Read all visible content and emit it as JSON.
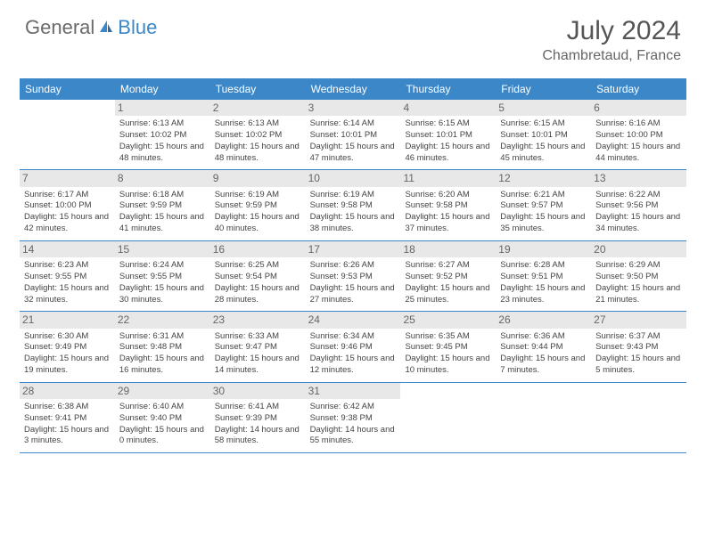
{
  "logo": {
    "text1": "General",
    "text2": "Blue"
  },
  "title": "July 2024",
  "location": "Chambretaud, France",
  "header_bg": "#3b87c8",
  "daynum_bg": "#e8e8e8",
  "border_color": "#3b87c8",
  "dayNames": [
    "Sunday",
    "Monday",
    "Tuesday",
    "Wednesday",
    "Thursday",
    "Friday",
    "Saturday"
  ],
  "weeks": [
    [
      {
        "n": "",
        "empty": true
      },
      {
        "n": "1",
        "sr": "6:13 AM",
        "ss": "10:02 PM",
        "dl": "15 hours and 48 minutes."
      },
      {
        "n": "2",
        "sr": "6:13 AM",
        "ss": "10:02 PM",
        "dl": "15 hours and 48 minutes."
      },
      {
        "n": "3",
        "sr": "6:14 AM",
        "ss": "10:01 PM",
        "dl": "15 hours and 47 minutes."
      },
      {
        "n": "4",
        "sr": "6:15 AM",
        "ss": "10:01 PM",
        "dl": "15 hours and 46 minutes."
      },
      {
        "n": "5",
        "sr": "6:15 AM",
        "ss": "10:01 PM",
        "dl": "15 hours and 45 minutes."
      },
      {
        "n": "6",
        "sr": "6:16 AM",
        "ss": "10:00 PM",
        "dl": "15 hours and 44 minutes."
      }
    ],
    [
      {
        "n": "7",
        "sr": "6:17 AM",
        "ss": "10:00 PM",
        "dl": "15 hours and 42 minutes."
      },
      {
        "n": "8",
        "sr": "6:18 AM",
        "ss": "9:59 PM",
        "dl": "15 hours and 41 minutes."
      },
      {
        "n": "9",
        "sr": "6:19 AM",
        "ss": "9:59 PM",
        "dl": "15 hours and 40 minutes."
      },
      {
        "n": "10",
        "sr": "6:19 AM",
        "ss": "9:58 PM",
        "dl": "15 hours and 38 minutes."
      },
      {
        "n": "11",
        "sr": "6:20 AM",
        "ss": "9:58 PM",
        "dl": "15 hours and 37 minutes."
      },
      {
        "n": "12",
        "sr": "6:21 AM",
        "ss": "9:57 PM",
        "dl": "15 hours and 35 minutes."
      },
      {
        "n": "13",
        "sr": "6:22 AM",
        "ss": "9:56 PM",
        "dl": "15 hours and 34 minutes."
      }
    ],
    [
      {
        "n": "14",
        "sr": "6:23 AM",
        "ss": "9:55 PM",
        "dl": "15 hours and 32 minutes."
      },
      {
        "n": "15",
        "sr": "6:24 AM",
        "ss": "9:55 PM",
        "dl": "15 hours and 30 minutes."
      },
      {
        "n": "16",
        "sr": "6:25 AM",
        "ss": "9:54 PM",
        "dl": "15 hours and 28 minutes."
      },
      {
        "n": "17",
        "sr": "6:26 AM",
        "ss": "9:53 PM",
        "dl": "15 hours and 27 minutes."
      },
      {
        "n": "18",
        "sr": "6:27 AM",
        "ss": "9:52 PM",
        "dl": "15 hours and 25 minutes."
      },
      {
        "n": "19",
        "sr": "6:28 AM",
        "ss": "9:51 PM",
        "dl": "15 hours and 23 minutes."
      },
      {
        "n": "20",
        "sr": "6:29 AM",
        "ss": "9:50 PM",
        "dl": "15 hours and 21 minutes."
      }
    ],
    [
      {
        "n": "21",
        "sr": "6:30 AM",
        "ss": "9:49 PM",
        "dl": "15 hours and 19 minutes."
      },
      {
        "n": "22",
        "sr": "6:31 AM",
        "ss": "9:48 PM",
        "dl": "15 hours and 16 minutes."
      },
      {
        "n": "23",
        "sr": "6:33 AM",
        "ss": "9:47 PM",
        "dl": "15 hours and 14 minutes."
      },
      {
        "n": "24",
        "sr": "6:34 AM",
        "ss": "9:46 PM",
        "dl": "15 hours and 12 minutes."
      },
      {
        "n": "25",
        "sr": "6:35 AM",
        "ss": "9:45 PM",
        "dl": "15 hours and 10 minutes."
      },
      {
        "n": "26",
        "sr": "6:36 AM",
        "ss": "9:44 PM",
        "dl": "15 hours and 7 minutes."
      },
      {
        "n": "27",
        "sr": "6:37 AM",
        "ss": "9:43 PM",
        "dl": "15 hours and 5 minutes."
      }
    ],
    [
      {
        "n": "28",
        "sr": "6:38 AM",
        "ss": "9:41 PM",
        "dl": "15 hours and 3 minutes."
      },
      {
        "n": "29",
        "sr": "6:40 AM",
        "ss": "9:40 PM",
        "dl": "15 hours and 0 minutes."
      },
      {
        "n": "30",
        "sr": "6:41 AM",
        "ss": "9:39 PM",
        "dl": "14 hours and 58 minutes."
      },
      {
        "n": "31",
        "sr": "6:42 AM",
        "ss": "9:38 PM",
        "dl": "14 hours and 55 minutes."
      },
      {
        "n": "",
        "empty": true
      },
      {
        "n": "",
        "empty": true
      },
      {
        "n": "",
        "empty": true
      }
    ]
  ],
  "labels": {
    "sunrise": "Sunrise:",
    "sunset": "Sunset:",
    "daylight": "Daylight:"
  }
}
